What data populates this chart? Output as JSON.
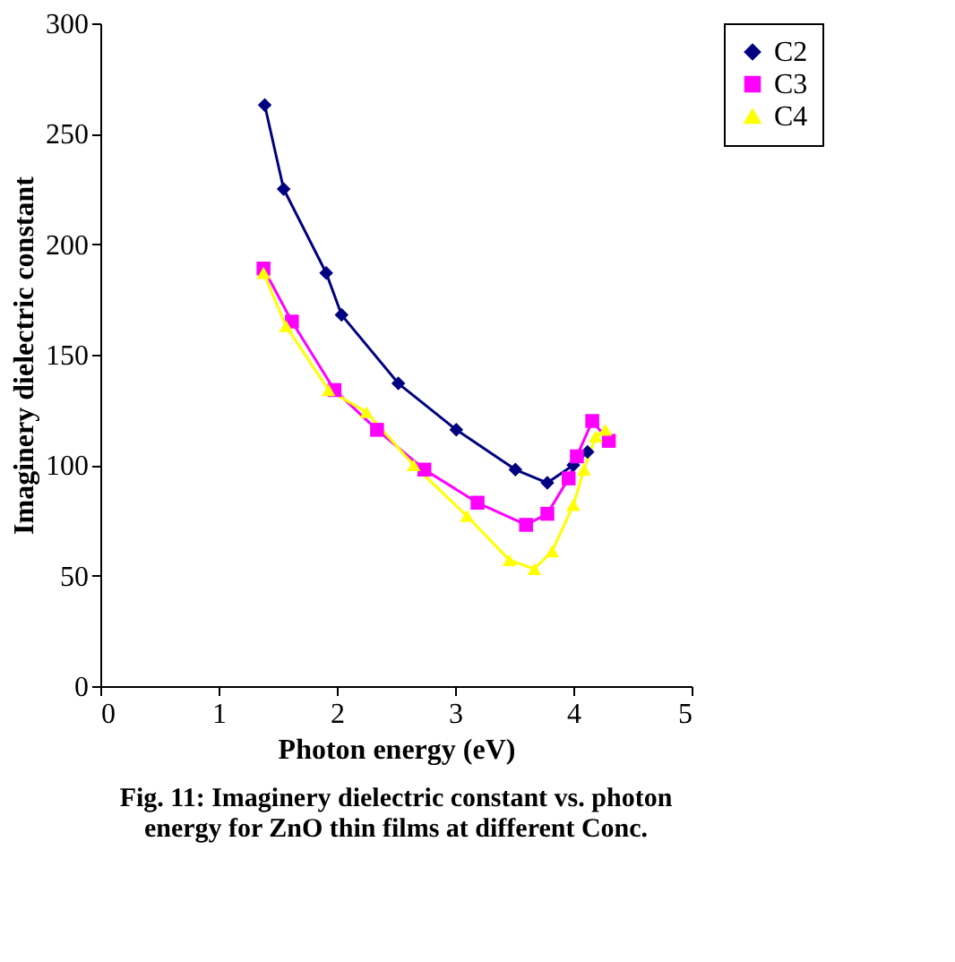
{
  "chart_data": {
    "type": "line",
    "title": "Fig. 11: Imaginery dielectric constant vs. photon energy for ZnO thin films at different Conc.",
    "xlabel": "Photon energy (eV)",
    "ylabel": "Imaginery dielectric constant",
    "xlim": [
      0,
      5
    ],
    "xticks": [
      0,
      1,
      2,
      3,
      4,
      5
    ],
    "ylim": [
      0,
      300
    ],
    "yticks": [
      0,
      50,
      100,
      150,
      200,
      250,
      300
    ],
    "grid": false,
    "legend": "right",
    "series": [
      {
        "name": "C2",
        "color": "#000080",
        "marker": "diamond",
        "x": [
          1.39,
          1.55,
          1.91,
          2.04,
          2.52,
          3.01,
          3.51,
          3.78,
          4.0,
          4.12
        ],
        "values": [
          263,
          225,
          187,
          168,
          137,
          116,
          98,
          92,
          100,
          106
        ]
      },
      {
        "name": "C3",
        "color": "#ff00ff",
        "marker": "square",
        "x": [
          1.38,
          1.62,
          1.98,
          2.34,
          2.74,
          3.19,
          3.6,
          3.78,
          3.96,
          4.03,
          4.16,
          4.3
        ],
        "values": [
          189,
          165,
          134,
          116,
          98,
          83,
          73,
          78,
          94,
          104,
          120,
          111
        ]
      },
      {
        "name": "C4",
        "color": "#ffff00",
        "marker": "triangle",
        "x": [
          1.38,
          1.57,
          1.93,
          2.25,
          2.65,
          3.1,
          3.46,
          3.67,
          3.82,
          4.0,
          4.09,
          4.19,
          4.27
        ],
        "values": [
          187,
          163,
          134,
          124,
          100,
          77,
          57,
          53,
          61,
          82,
          98,
          113,
          116
        ]
      }
    ]
  }
}
